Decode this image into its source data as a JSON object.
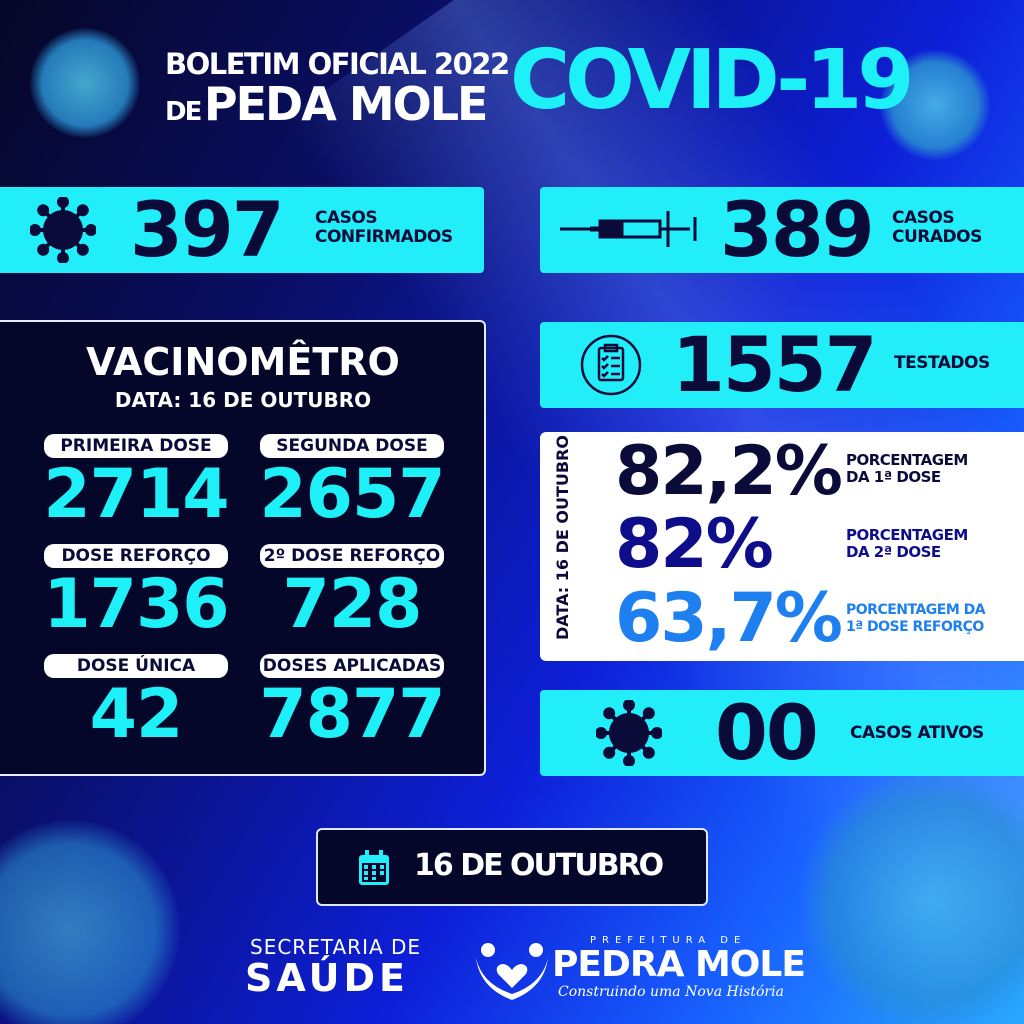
{
  "header": {
    "line1": "BOLETIM OFICIAL 2022",
    "line2_prefix": "DE",
    "line2_name": "PEDA MOLE",
    "covid": "COVID-19"
  },
  "stats": {
    "confirmed": {
      "value": "397",
      "label1": "CASOS",
      "label2": "CONFIRMADOS",
      "icon": "virus-icon"
    },
    "cured": {
      "value": "389",
      "label1": "CASOS",
      "label2": "CURADOS",
      "icon": "syringe-icon"
    },
    "tested": {
      "value": "1557",
      "label": "TESTADOS",
      "icon": "clipboard-icon"
    },
    "active": {
      "value": "00",
      "label": "CASOS ATIVOS",
      "icon": "virus-icon"
    }
  },
  "vacinometro": {
    "title": "VACINOMÊTRO",
    "date": "DATA: 16 DE OUTUBRO",
    "items": [
      {
        "label": "PRIMEIRA DOSE",
        "value": "2714"
      },
      {
        "label": "SEGUNDA DOSE",
        "value": "2657"
      },
      {
        "label": "DOSE REFORÇO",
        "value": "1736"
      },
      {
        "label": "2º DOSE REFORÇO",
        "value": "728"
      },
      {
        "label": "DOSE ÚNICA",
        "value": "42"
      },
      {
        "label": "DOSES APLICADAS",
        "value": "7877"
      }
    ]
  },
  "percentages": {
    "date": "DATA: 16 DE OUTUBRO",
    "items": [
      {
        "value": "82,2%",
        "label1": "PORCENTAGEM",
        "label2": "DA 1ª DOSE",
        "color": "#0b0b3a"
      },
      {
        "value": "82%",
        "label1": "PORCENTAGEM",
        "label2": "DA 2ª DOSE",
        "color": "#0e0e8a"
      },
      {
        "value": "63,7%",
        "label1": "PORCENTAGEM DA",
        "label2": "1ª DOSE REFORÇO",
        "color": "#1e7ff0"
      }
    ]
  },
  "date_button": {
    "label": "16 DE OUTUBRO",
    "icon": "calendar-icon"
  },
  "footer": {
    "secretaria1": "SECRETARIA DE",
    "secretaria2": "SAÚDE",
    "prefeitura": "PREFEITURA DE",
    "city": "PEDRA MOLE",
    "slogan": "Construindo uma Nova História"
  },
  "colors": {
    "cyan": "#22eefa",
    "navy": "#0b0b3a",
    "accent_blue": "#1e7ff0"
  }
}
